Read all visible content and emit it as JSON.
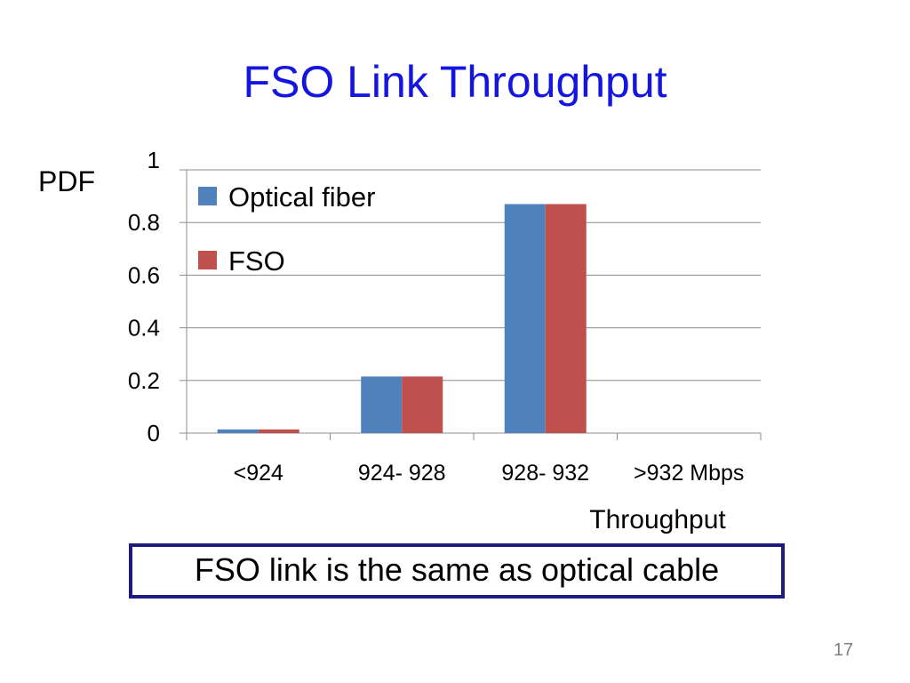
{
  "slide": {
    "title": "FSO Link Throughput",
    "callout": "FSO link is the same as optical cable",
    "page_number": "17"
  },
  "colors": {
    "title": "#1515e0",
    "optical_fiber": "#4f81bd",
    "fso": "#c0504d",
    "callout_border": "#1d1a80"
  },
  "chart_data": {
    "type": "bar",
    "title": "",
    "ylabel": "PDF",
    "xlabel": "Throughput",
    "categories": [
      "<924",
      "924- 928",
      "928- 932",
      ">932 Mbps"
    ],
    "series": [
      {
        "name": "Optical fiber",
        "values": [
          0.014,
          0.215,
          0.87,
          0
        ]
      },
      {
        "name": "FSO",
        "values": [
          0.014,
          0.215,
          0.87,
          0
        ]
      }
    ],
    "ylim": [
      0,
      1
    ],
    "yticks": [
      "0",
      "0.2",
      "0.4",
      "0.6",
      "0.8",
      "1"
    ],
    "grid": true,
    "legend": "top-left"
  }
}
